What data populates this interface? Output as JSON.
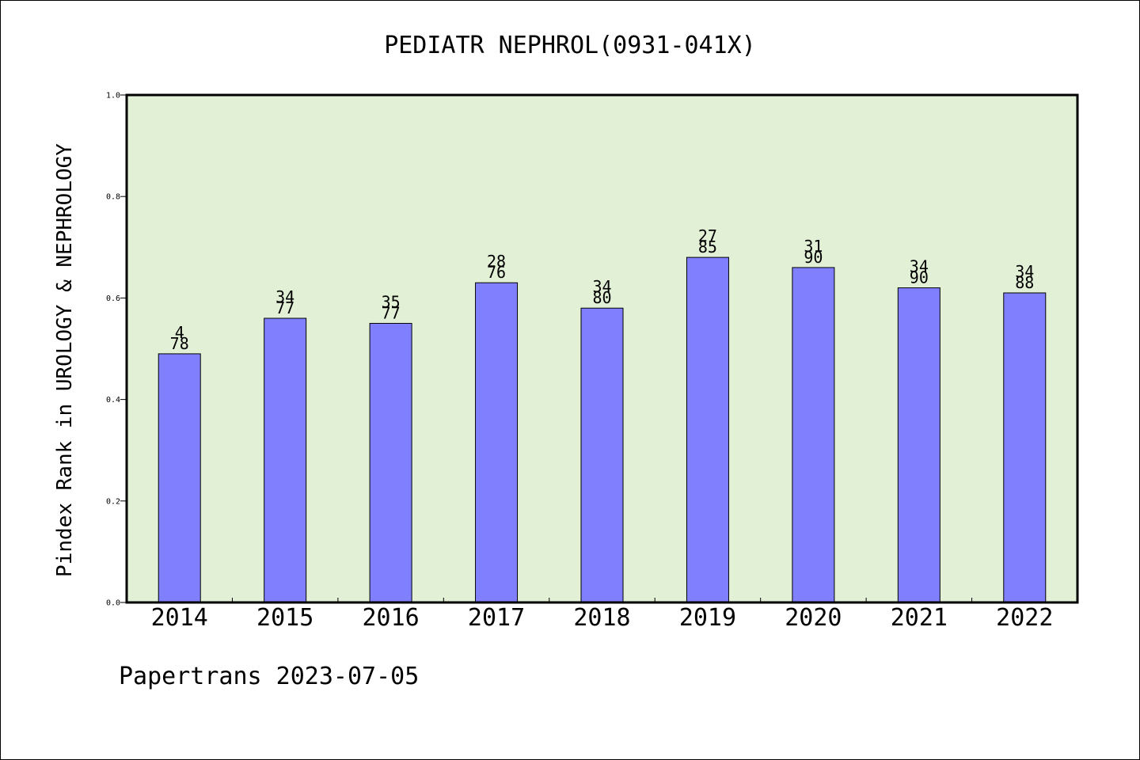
{
  "chart_data": {
    "type": "bar",
    "title": "PEDIATR NEPHROL(0931-041X)",
    "ylabel": "Pindex Rank in UROLOGY & NEPHROLOGY",
    "xlabel": "",
    "footer": "Papertrans 2023-07-05",
    "categories": [
      "2014",
      "2015",
      "2016",
      "2017",
      "2018",
      "2019",
      "2020",
      "2021",
      "2022"
    ],
    "values": [
      0.49,
      0.56,
      0.55,
      0.63,
      0.58,
      0.68,
      0.66,
      0.62,
      0.61
    ],
    "label_top": [
      "4",
      "34",
      "35",
      "28",
      "34",
      "27",
      "31",
      "34",
      "34"
    ],
    "label_bottom": [
      "78",
      "77",
      "77",
      "76",
      "80",
      "85",
      "90",
      "90",
      "88"
    ],
    "ylim": [
      0,
      1.0
    ],
    "yticks": [
      "0.0",
      "0.2",
      "0.4",
      "0.6",
      "0.8",
      "1.0"
    ],
    "ytick_values": [
      0,
      0.2,
      0.4,
      0.6,
      0.8,
      1.0
    ],
    "grid": false,
    "colors": {
      "bar": "#8080ff",
      "plot_background": "#e2f0d6",
      "axis": "#000000"
    }
  }
}
